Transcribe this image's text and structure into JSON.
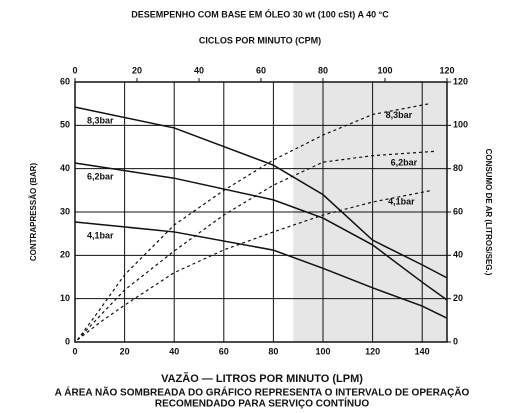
{
  "chart_data": {
    "type": "line",
    "title": "DESEMPENHO COM BASE EM ÓLEO 30 wt (100 cSt) A 40 °C",
    "x2_label": "CICLOS POR MINUTO (CPM)",
    "y_label": "CONTRAPRESSÃO (BAR)",
    "y2_label": "CONSUMO DE AR (LITROS/SEG.)",
    "x_label": "VAZÃO — LITROS POR MINUTO (LPM)",
    "notes": [
      "A ÁREA NÃO SOMBREADA DO GRÁFICO REPRESENTA O INTERVALO DE OPERAÇÃO",
      "RECOMENDADO PARA SERVIÇO CONTÍNUO"
    ],
    "xlim": [
      0,
      150
    ],
    "xticks": [
      0,
      20,
      40,
      60,
      80,
      100,
      120,
      140
    ],
    "x2lim": [
      0,
      120
    ],
    "x2ticks": [
      0,
      20,
      40,
      60,
      80,
      100,
      120
    ],
    "ylim": [
      0,
      60
    ],
    "yticks": [
      0,
      10,
      20,
      30,
      40,
      50,
      60
    ],
    "y2lim": [
      0,
      120
    ],
    "y2ticks": [
      0,
      20,
      40,
      60,
      80,
      100,
      120
    ],
    "grid": true,
    "shade_x": [
      88,
      150
    ],
    "shade_color": "#e6e6e6",
    "series": [
      {
        "name": "8,3bar",
        "color": "#111111",
        "style": "solid",
        "x": [
          0,
          40,
          80,
          100,
          120,
          140,
          150
        ],
        "values": [
          54.2,
          49.4,
          40.8,
          34,
          23.5,
          17.8,
          14.8
        ]
      },
      {
        "name": "6,2bar",
        "color": "#111111",
        "style": "solid",
        "x": [
          0,
          40,
          80,
          100,
          120,
          140,
          150
        ],
        "values": [
          41.3,
          37.8,
          32.8,
          28.6,
          22.4,
          13.8,
          9.7
        ]
      },
      {
        "name": "4,1bar",
        "color": "#111111",
        "style": "solid",
        "x": [
          0,
          40,
          80,
          100,
          120,
          140,
          150
        ],
        "values": [
          27.7,
          25.4,
          21.2,
          17,
          12.5,
          8.3,
          5.5
        ]
      },
      {
        "name": "8,3bar",
        "color": "#111111",
        "style": "dashed",
        "axis": "y2",
        "x": [
          1,
          10,
          20,
          40,
          60,
          80,
          100,
          120,
          143
        ],
        "values": [
          1,
          15,
          31,
          54,
          70,
          84,
          95.5,
          105,
          110
        ]
      },
      {
        "name": "6,2bar",
        "color": "#111111",
        "style": "dashed",
        "axis": "y2",
        "x": [
          1,
          10,
          20,
          40,
          60,
          80,
          100,
          120,
          145
        ],
        "values": [
          1,
          12,
          24,
          42,
          58.6,
          72.4,
          83,
          86,
          88
        ]
      },
      {
        "name": "4,1bar",
        "color": "#111111",
        "style": "dashed",
        "axis": "y2",
        "x": [
          1,
          10,
          20,
          40,
          60,
          80,
          100,
          120,
          144
        ],
        "values": [
          1,
          9,
          17,
          32,
          42.5,
          50.8,
          58.6,
          64.6,
          70
        ]
      }
    ]
  }
}
